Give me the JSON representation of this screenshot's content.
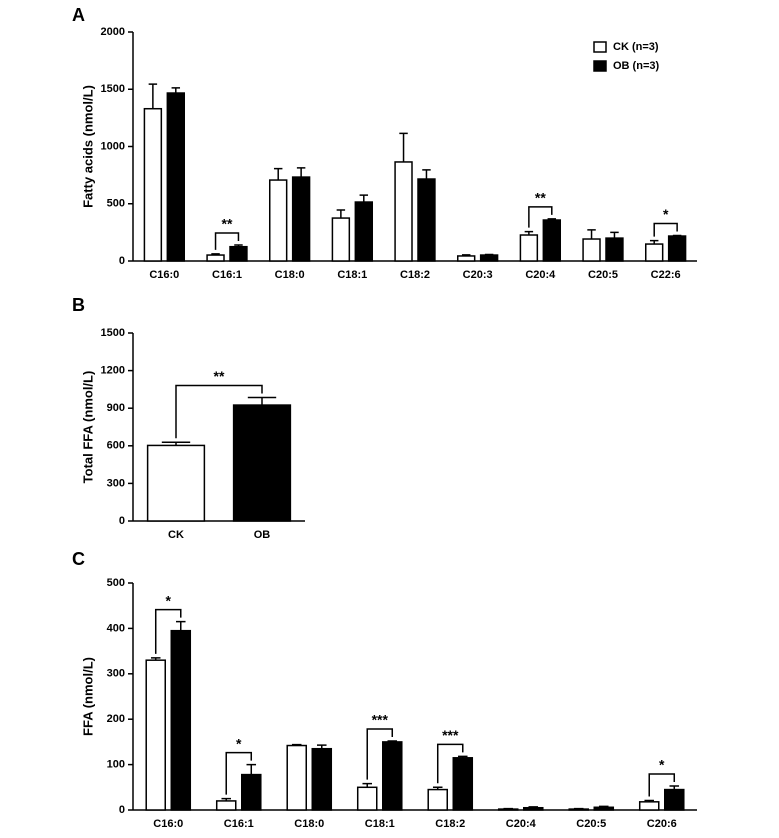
{
  "chart_data": [
    {
      "type": "bar",
      "panel_label": "A",
      "ylabel": "Fatty acids (nmol/L)",
      "categories": [
        "C16:0",
        "C16:1",
        "C18:0",
        "C18:1",
        "C18:2",
        "C20:3",
        "C20:4",
        "C20:5",
        "C22:6"
      ],
      "series": [
        {
          "name": "CK (n=3)",
          "color": "#ffffff",
          "values": [
            1330,
            52,
            707,
            375,
            865,
            44,
            227,
            192,
            148
          ],
          "errors": [
            215,
            10,
            100,
            70,
            250,
            10,
            30,
            80,
            30
          ]
        },
        {
          "name": "OB (n=3)",
          "color": "#000000",
          "values": [
            1467,
            125,
            733,
            515,
            716,
            52,
            358,
            200,
            218
          ],
          "errors": [
            45,
            15,
            80,
            60,
            80,
            5,
            10,
            50,
            5
          ]
        }
      ],
      "significance": [
        null,
        "**",
        null,
        null,
        null,
        null,
        "**",
        null,
        "*"
      ],
      "ylim": [
        0,
        2000
      ],
      "yticks": [
        0,
        500,
        1000,
        1500,
        2000
      ],
      "legend": "upper right"
    },
    {
      "type": "bar",
      "panel_label": "B",
      "ylabel": "Total FFA (nmol/L)",
      "categories": [
        "CK",
        "OB"
      ],
      "values": [
        603,
        925
      ],
      "errors": [
        25,
        60
      ],
      "colors": [
        "#ffffff",
        "#000000"
      ],
      "significance": "**",
      "ylim": [
        0,
        1500
      ],
      "yticks": [
        0,
        300,
        600,
        900,
        1200,
        1500
      ]
    },
    {
      "type": "bar",
      "panel_label": "C",
      "ylabel": "FFA (nmol/L)",
      "categories": [
        "C16:0",
        "C16:1",
        "C18:0",
        "C18:1",
        "C18:2",
        "C20:4",
        "C20:5",
        "C20:6"
      ],
      "series": [
        {
          "color": "#ffffff",
          "values": [
            330,
            20,
            142,
            50,
            45,
            2,
            2,
            18
          ],
          "errors": [
            5,
            5,
            2,
            8,
            5,
            1,
            1,
            3
          ]
        },
        {
          "color": "#000000",
          "values": [
            395,
            78,
            135,
            150,
            115,
            5,
            6,
            45
          ],
          "errors": [
            20,
            22,
            8,
            2,
            3,
            2,
            2,
            8
          ]
        }
      ],
      "significance": [
        "*",
        "*",
        null,
        "***",
        "***",
        null,
        null,
        "*"
      ],
      "ylim": [
        0,
        500
      ],
      "yticks": [
        0,
        100,
        200,
        300,
        400,
        500
      ]
    }
  ]
}
